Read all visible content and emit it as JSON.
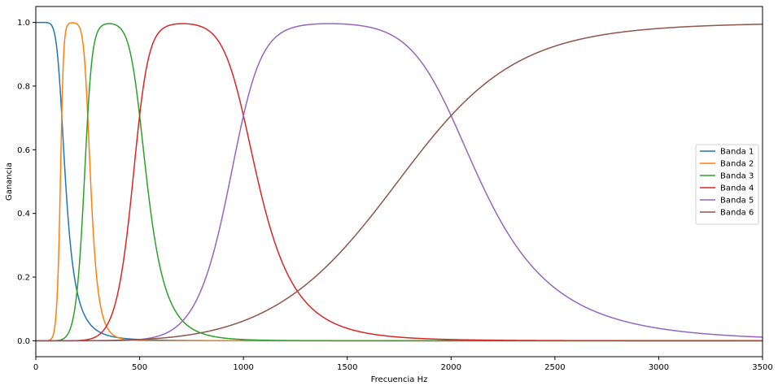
{
  "chart_data": {
    "type": "line",
    "title": "",
    "xlabel": "Frecuencia Hz",
    "ylabel": "Ganancia",
    "xlim": [
      0,
      3500
    ],
    "ylim": [
      -0.05,
      1.05
    ],
    "xticks": [
      0,
      500,
      1000,
      1500,
      2000,
      2500,
      3000,
      3500
    ],
    "xtick_labels": [
      "0",
      "500",
      "1000",
      "1500",
      "2000",
      "2500",
      "3000",
      "3500"
    ],
    "yticks": [
      0.0,
      0.2,
      0.4,
      0.6,
      0.8,
      1.0
    ],
    "ytick_labels": [
      "0.0",
      "0.2",
      "0.4",
      "0.6",
      "0.8",
      "1.0"
    ],
    "grid": false,
    "legend_position": "center-right",
    "series": [
      {
        "name": "Banda 1",
        "color": "#1f77b4",
        "low_cut_hz": null,
        "high_cut_hz": 125,
        "order": 4
      },
      {
        "name": "Banda 2",
        "color": "#ff7f0e",
        "low_cut_hz": 125,
        "high_cut_hz": 250,
        "order": 10
      },
      {
        "name": "Banda 3",
        "color": "#2ca02c",
        "low_cut_hz": 250,
        "high_cut_hz": 500,
        "order": 8
      },
      {
        "name": "Banda 4",
        "color": "#d62728",
        "low_cut_hz": 500,
        "high_cut_hz": 1000,
        "order": 8
      },
      {
        "name": "Banda 5",
        "color": "#9467bd",
        "low_cut_hz": 1000,
        "high_cut_hz": 2000,
        "order": 8
      },
      {
        "name": "Banda 6",
        "color": "#8c564b",
        "low_cut_hz": 2000,
        "high_cut_hz": null,
        "order": 4
      }
    ]
  }
}
